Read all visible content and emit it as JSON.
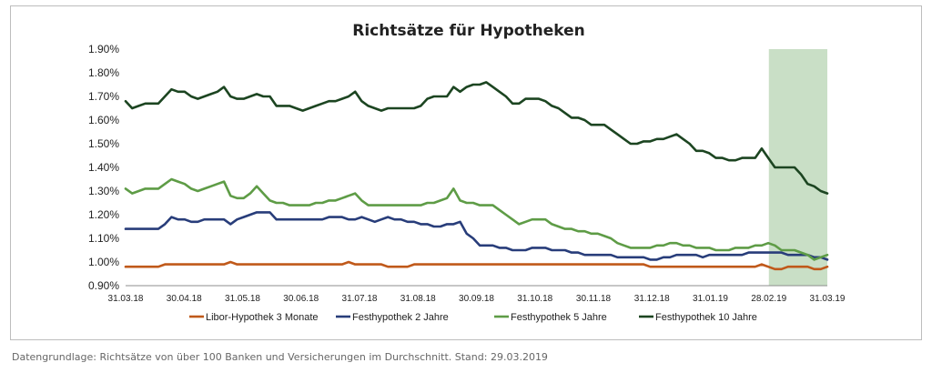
{
  "chart_data": {
    "type": "line",
    "title": "Richtsätze für Hypotheken",
    "xlabel": "",
    "ylabel": "",
    "ylim": [
      0.9,
      1.9
    ],
    "y_ticks": [
      "0.90%",
      "1.00%",
      "1.10%",
      "1.20%",
      "1.30%",
      "1.40%",
      "1.50%",
      "1.60%",
      "1.70%",
      "1.80%",
      "1.90%"
    ],
    "x_ticks": [
      "31.03.18",
      "30.04.18",
      "31.05.18",
      "30.06.18",
      "31.07.18",
      "31.08.18",
      "30.09.18",
      "31.10.18",
      "30.11.18",
      "31.12.18",
      "31.01.19",
      "28.02.19",
      "31.03.19"
    ],
    "highlight": {
      "from": "28.02.19",
      "to": "31.03.19",
      "color": "#c9dfc6"
    },
    "grid": false,
    "legend_position": "bottom",
    "series": [
      {
        "name": "Libor-Hypothek 3 Monate",
        "color": "#c0591a",
        "values": [
          0.98,
          0.98,
          0.98,
          0.98,
          0.98,
          0.98,
          0.99,
          0.99,
          0.99,
          0.99,
          0.99,
          0.99,
          0.99,
          0.99,
          0.99,
          0.99,
          1.0,
          0.99,
          0.99,
          0.99,
          0.99,
          0.99,
          0.99,
          0.99,
          0.99,
          0.99,
          0.99,
          0.99,
          0.99,
          0.99,
          0.99,
          0.99,
          0.99,
          0.99,
          1.0,
          0.99,
          0.99,
          0.99,
          0.99,
          0.99,
          0.98,
          0.98,
          0.98,
          0.98,
          0.99,
          0.99,
          0.99,
          0.99,
          0.99,
          0.99,
          0.99,
          0.99,
          0.99,
          0.99,
          0.99,
          0.99,
          0.99,
          0.99,
          0.99,
          0.99,
          0.99,
          0.99,
          0.99,
          0.99,
          0.99,
          0.99,
          0.99,
          0.99,
          0.99,
          0.99,
          0.99,
          0.99,
          0.99,
          0.99,
          0.99,
          0.99,
          0.99,
          0.99,
          0.99,
          0.99,
          0.98,
          0.98,
          0.98,
          0.98,
          0.98,
          0.98,
          0.98,
          0.98,
          0.98,
          0.98,
          0.98,
          0.98,
          0.98,
          0.98,
          0.98,
          0.98,
          0.98,
          0.99,
          0.98,
          0.97,
          0.97,
          0.98,
          0.98,
          0.98,
          0.98,
          0.97,
          0.97,
          0.98
        ]
      },
      {
        "name": "Festhypothek 2 Jahre",
        "color": "#283d7a",
        "values": [
          1.14,
          1.14,
          1.14,
          1.14,
          1.14,
          1.14,
          1.16,
          1.19,
          1.18,
          1.18,
          1.17,
          1.17,
          1.18,
          1.18,
          1.18,
          1.18,
          1.16,
          1.18,
          1.19,
          1.2,
          1.21,
          1.21,
          1.21,
          1.18,
          1.18,
          1.18,
          1.18,
          1.18,
          1.18,
          1.18,
          1.18,
          1.19,
          1.19,
          1.19,
          1.18,
          1.18,
          1.19,
          1.18,
          1.17,
          1.18,
          1.19,
          1.18,
          1.18,
          1.17,
          1.17,
          1.16,
          1.16,
          1.15,
          1.15,
          1.16,
          1.16,
          1.17,
          1.12,
          1.1,
          1.07,
          1.07,
          1.07,
          1.06,
          1.06,
          1.05,
          1.05,
          1.05,
          1.06,
          1.06,
          1.06,
          1.05,
          1.05,
          1.05,
          1.04,
          1.04,
          1.03,
          1.03,
          1.03,
          1.03,
          1.03,
          1.02,
          1.02,
          1.02,
          1.02,
          1.02,
          1.01,
          1.01,
          1.02,
          1.02,
          1.03,
          1.03,
          1.03,
          1.03,
          1.02,
          1.03,
          1.03,
          1.03,
          1.03,
          1.03,
          1.03,
          1.04,
          1.04,
          1.04,
          1.04,
          1.04,
          1.04,
          1.03,
          1.03,
          1.03,
          1.03,
          1.02,
          1.02,
          1.01
        ]
      },
      {
        "name": "Festhypothek 5 Jahre",
        "color": "#5e9c46",
        "values": [
          1.31,
          1.29,
          1.3,
          1.31,
          1.31,
          1.31,
          1.33,
          1.35,
          1.34,
          1.33,
          1.31,
          1.3,
          1.31,
          1.32,
          1.33,
          1.34,
          1.28,
          1.27,
          1.27,
          1.29,
          1.32,
          1.29,
          1.26,
          1.25,
          1.25,
          1.24,
          1.24,
          1.24,
          1.24,
          1.25,
          1.25,
          1.26,
          1.26,
          1.27,
          1.28,
          1.29,
          1.26,
          1.24,
          1.24,
          1.24,
          1.24,
          1.24,
          1.24,
          1.24,
          1.24,
          1.24,
          1.25,
          1.25,
          1.26,
          1.27,
          1.31,
          1.26,
          1.25,
          1.25,
          1.24,
          1.24,
          1.24,
          1.22,
          1.2,
          1.18,
          1.16,
          1.17,
          1.18,
          1.18,
          1.18,
          1.16,
          1.15,
          1.14,
          1.14,
          1.13,
          1.13,
          1.12,
          1.12,
          1.11,
          1.1,
          1.08,
          1.07,
          1.06,
          1.06,
          1.06,
          1.06,
          1.07,
          1.07,
          1.08,
          1.08,
          1.07,
          1.07,
          1.06,
          1.06,
          1.06,
          1.05,
          1.05,
          1.05,
          1.06,
          1.06,
          1.06,
          1.07,
          1.07,
          1.08,
          1.07,
          1.05,
          1.05,
          1.05,
          1.04,
          1.03,
          1.01,
          1.02,
          1.03
        ]
      },
      {
        "name": "Festhypothek 10 Jahre",
        "color": "#1c4521",
        "values": [
          1.68,
          1.65,
          1.66,
          1.67,
          1.67,
          1.67,
          1.7,
          1.73,
          1.72,
          1.72,
          1.7,
          1.69,
          1.7,
          1.71,
          1.72,
          1.74,
          1.7,
          1.69,
          1.69,
          1.7,
          1.71,
          1.7,
          1.7,
          1.66,
          1.66,
          1.66,
          1.65,
          1.64,
          1.65,
          1.66,
          1.67,
          1.68,
          1.68,
          1.69,
          1.7,
          1.72,
          1.68,
          1.66,
          1.65,
          1.64,
          1.65,
          1.65,
          1.65,
          1.65,
          1.65,
          1.66,
          1.69,
          1.7,
          1.7,
          1.7,
          1.74,
          1.72,
          1.74,
          1.75,
          1.75,
          1.76,
          1.74,
          1.72,
          1.7,
          1.67,
          1.67,
          1.69,
          1.69,
          1.69,
          1.68,
          1.66,
          1.65,
          1.63,
          1.61,
          1.61,
          1.6,
          1.58,
          1.58,
          1.58,
          1.56,
          1.54,
          1.52,
          1.5,
          1.5,
          1.51,
          1.51,
          1.52,
          1.52,
          1.53,
          1.54,
          1.52,
          1.5,
          1.47,
          1.47,
          1.46,
          1.44,
          1.44,
          1.43,
          1.43,
          1.44,
          1.44,
          1.44,
          1.48,
          1.44,
          1.4,
          1.4,
          1.4,
          1.4,
          1.37,
          1.33,
          1.32,
          1.3,
          1.29
        ]
      }
    ]
  },
  "caption": "Datengrundlage: Richtsätze von über 100 Banken und Versicherungen im Durchschnitt. Stand: 29.03.2019"
}
